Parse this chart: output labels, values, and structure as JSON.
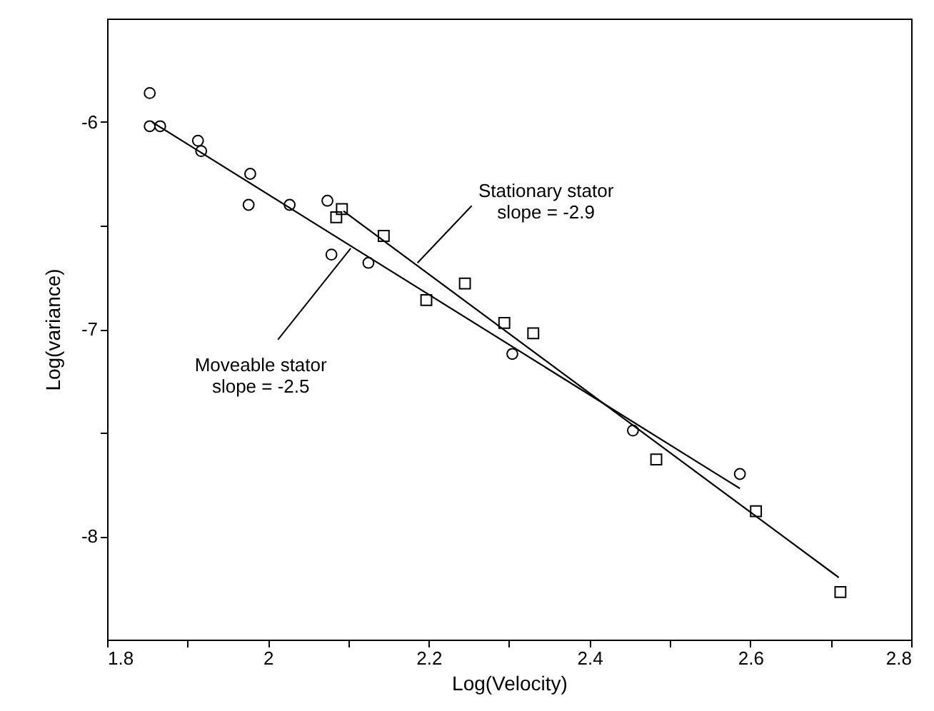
{
  "chart_data": {
    "type": "scatter",
    "xlabel": "Log(Velocity)",
    "ylabel": "Log(variance)",
    "xlim": [
      1.8,
      2.8
    ],
    "xticks": [
      1.8,
      {
        "value": 1.9,
        "label": null
      },
      2,
      {
        "value": 2.1,
        "label": null
      },
      2.2,
      {
        "value": 2.3,
        "label": null
      },
      2.4,
      {
        "value": 2.5,
        "label": null
      },
      2.6,
      {
        "value": 2.7,
        "label": null
      },
      2.8
    ],
    "ylim": [
      -8.5,
      -5.5
    ],
    "yticks": [
      -6,
      {
        "value": -6.5,
        "label": null
      },
      -7,
      {
        "value": -7.5,
        "label": null
      },
      -8
    ],
    "grid": false,
    "series": [
      {
        "marker": "circle",
        "color": "#000000",
        "x": [
          1.853,
          1.853,
          1.866,
          1.913,
          1.917,
          1.978,
          1.976,
          2.027,
          2.074,
          2.079,
          2.125,
          2.304,
          2.454,
          2.587
        ],
        "values": [
          -5.86,
          -6.02,
          -6.02,
          -6.09,
          -6.14,
          -6.25,
          -6.4,
          -6.4,
          -6.38,
          -6.64,
          -6.68,
          -7.12,
          -7.49,
          -7.7
        ]
      },
      {
        "marker": "square",
        "color": "#000000",
        "x": [
          2.085,
          2.092,
          2.144,
          2.197,
          2.245,
          2.294,
          2.33,
          2.483,
          2.607,
          2.712
        ],
        "values": [
          -6.46,
          -6.42,
          -6.55,
          -6.86,
          -6.78,
          -6.97,
          -7.02,
          -7.63,
          -7.88,
          -8.27
        ]
      },
      {
        "type": "line",
        "color": "#000000",
        "x": [
          1.856,
          2.587
        ],
        "values": [
          -6.0,
          -7.77
        ]
      },
      {
        "type": "line",
        "color": "#000000",
        "x": [
          2.094,
          2.71
        ],
        "values": [
          -6.43,
          -8.2
        ]
      }
    ],
    "annotations": [
      {
        "text": "Stationary stator\nslope = -2.9",
        "x": 2.186,
        "y": -6.68
      },
      {
        "text": "Moveable stator\nslope = -2.5",
        "x": 2.103,
        "y": -6.61
      }
    ]
  }
}
